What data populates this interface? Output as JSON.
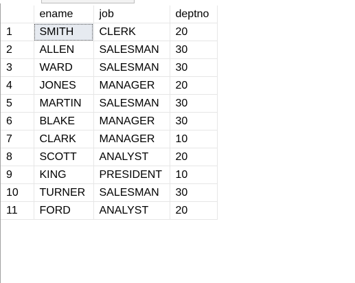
{
  "results_grid": {
    "columns": [
      "ename",
      "job",
      "deptno"
    ],
    "rows": [
      {
        "num": "1",
        "ename": "SMITH",
        "job": "CLERK",
        "deptno": "20"
      },
      {
        "num": "2",
        "ename": "ALLEN",
        "job": "SALESMAN",
        "deptno": "30"
      },
      {
        "num": "3",
        "ename": "WARD",
        "job": "SALESMAN",
        "deptno": "30"
      },
      {
        "num": "4",
        "ename": "JONES",
        "job": "MANAGER",
        "deptno": "20"
      },
      {
        "num": "5",
        "ename": "MARTIN",
        "job": "SALESMAN",
        "deptno": "30"
      },
      {
        "num": "6",
        "ename": "BLAKE",
        "job": "MANAGER",
        "deptno": "30"
      },
      {
        "num": "7",
        "ename": "CLARK",
        "job": "MANAGER",
        "deptno": "10"
      },
      {
        "num": "8",
        "ename": "SCOTT",
        "job": "ANALYST",
        "deptno": "20"
      },
      {
        "num": "9",
        "ename": "KING",
        "job": "PRESIDENT",
        "deptno": "10"
      },
      {
        "num": "10",
        "ename": "TURNER",
        "job": "SALESMAN",
        "deptno": "30"
      },
      {
        "num": "11",
        "ename": "FORD",
        "job": "ANALYST",
        "deptno": "20"
      }
    ],
    "selected_cell": {
      "row": 1,
      "column": "ename"
    },
    "colors": {
      "gridline": "#e6e6e6",
      "selection": "#e6eaf0"
    }
  }
}
